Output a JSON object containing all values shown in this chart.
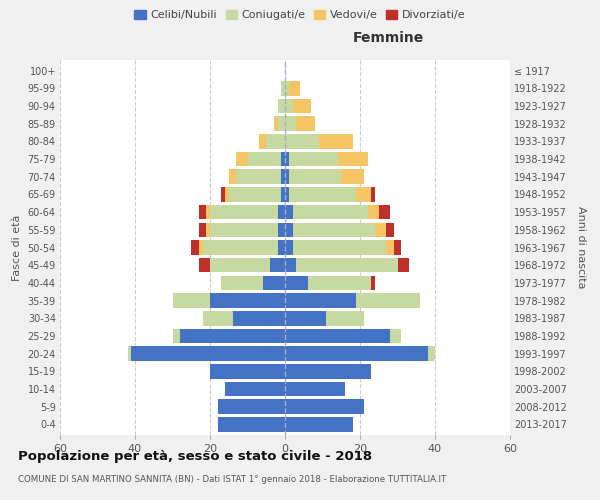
{
  "age_groups": [
    "0-4",
    "5-9",
    "10-14",
    "15-19",
    "20-24",
    "25-29",
    "30-34",
    "35-39",
    "40-44",
    "45-49",
    "50-54",
    "55-59",
    "60-64",
    "65-69",
    "70-74",
    "75-79",
    "80-84",
    "85-89",
    "90-94",
    "95-99",
    "100+"
  ],
  "birth_years": [
    "2013-2017",
    "2008-2012",
    "2003-2007",
    "1998-2002",
    "1993-1997",
    "1988-1992",
    "1983-1987",
    "1978-1982",
    "1973-1977",
    "1968-1972",
    "1963-1967",
    "1958-1962",
    "1953-1957",
    "1948-1952",
    "1943-1947",
    "1938-1942",
    "1933-1937",
    "1928-1932",
    "1923-1927",
    "1918-1922",
    "≤ 1917"
  ],
  "male": {
    "celibi": [
      18,
      18,
      16,
      20,
      41,
      28,
      14,
      20,
      6,
      4,
      2,
      2,
      2,
      1,
      1,
      1,
      0,
      0,
      0,
      0,
      0
    ],
    "coniugati": [
      0,
      0,
      0,
      0,
      1,
      2,
      8,
      10,
      11,
      16,
      20,
      18,
      18,
      14,
      12,
      9,
      5,
      2,
      2,
      1,
      0
    ],
    "vedovi": [
      0,
      0,
      0,
      0,
      0,
      0,
      0,
      0,
      0,
      0,
      1,
      1,
      1,
      1,
      2,
      3,
      2,
      1,
      0,
      0,
      0
    ],
    "divorziati": [
      0,
      0,
      0,
      0,
      0,
      0,
      0,
      0,
      0,
      3,
      2,
      2,
      2,
      1,
      0,
      0,
      0,
      0,
      0,
      0,
      0
    ]
  },
  "female": {
    "nubili": [
      18,
      21,
      16,
      23,
      38,
      28,
      11,
      19,
      6,
      3,
      2,
      2,
      2,
      1,
      1,
      1,
      0,
      0,
      0,
      0,
      0
    ],
    "coniugate": [
      0,
      0,
      0,
      0,
      2,
      3,
      10,
      17,
      17,
      27,
      25,
      22,
      20,
      18,
      14,
      13,
      9,
      3,
      2,
      1,
      0
    ],
    "vedove": [
      0,
      0,
      0,
      0,
      0,
      0,
      0,
      0,
      0,
      0,
      2,
      3,
      3,
      4,
      6,
      8,
      9,
      5,
      5,
      3,
      0
    ],
    "divorziate": [
      0,
      0,
      0,
      0,
      0,
      0,
      0,
      0,
      1,
      3,
      2,
      2,
      3,
      1,
      0,
      0,
      0,
      0,
      0,
      0,
      0
    ]
  },
  "colors": {
    "celibi": "#4472C4",
    "coniugati": "#C5D9A0",
    "vedovi": "#F5C464",
    "divorziati": "#C0302A"
  },
  "title": "Popolazione per età, sesso e stato civile - 2018",
  "subtitle": "COMUNE DI SAN MARTINO SANNITA (BN) - Dati ISTAT 1° gennaio 2018 - Elaborazione TUTTITALIA.IT",
  "ylabel": "Fasce di età",
  "ylabel_right": "Anni di nascita",
  "xlabel_right": "Femmine",
  "xlim": 60,
  "bg_color": "#f0f0f0",
  "plot_bg": "#ffffff",
  "legend_labels": [
    "Celibi/Nubili",
    "Coniugati/e",
    "Vedovi/e",
    "Divorziati/e"
  ]
}
